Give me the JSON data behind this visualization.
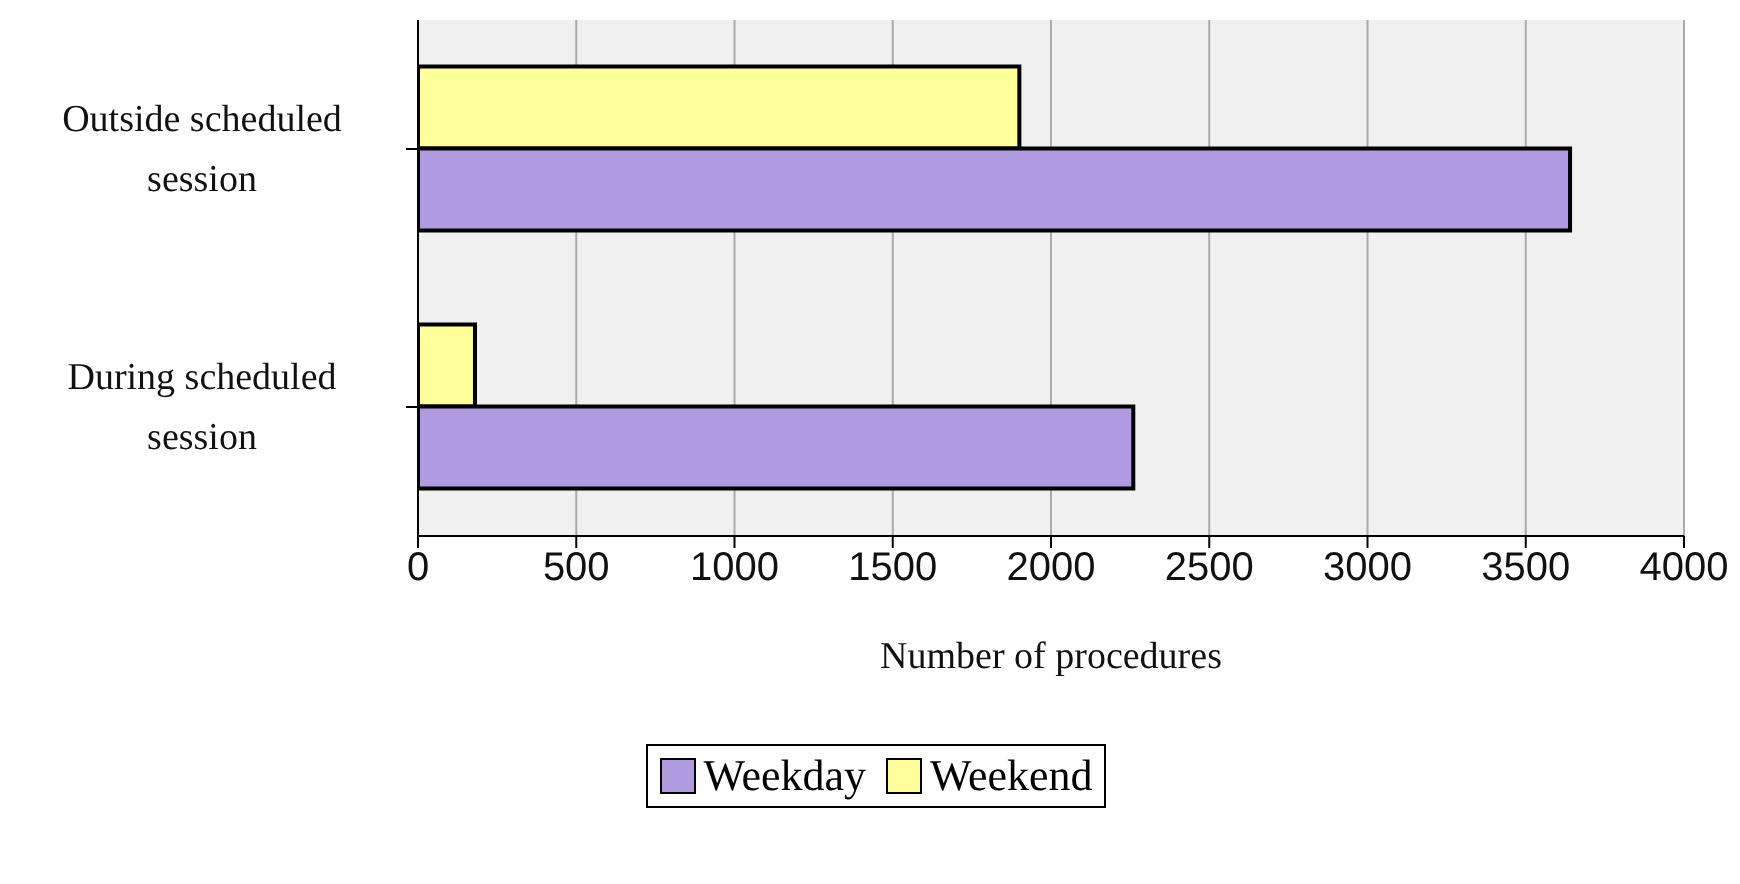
{
  "chart_data": {
    "type": "bar",
    "orientation": "horizontal",
    "categories": [
      "Outside scheduled session",
      "During scheduled session"
    ],
    "series": [
      {
        "name": "Weekday",
        "color": "#b19be0",
        "values": [
          3640,
          2260
        ]
      },
      {
        "name": "Weekend",
        "color": "#ffff99",
        "values": [
          1900,
          180
        ]
      }
    ],
    "xlim": [
      0,
      4000
    ],
    "xticks": [
      0,
      500,
      1000,
      1500,
      2000,
      2500,
      3000,
      3500,
      4000
    ],
    "xlabel": "Number of procedures",
    "grid": "x",
    "legend": "bottom"
  }
}
